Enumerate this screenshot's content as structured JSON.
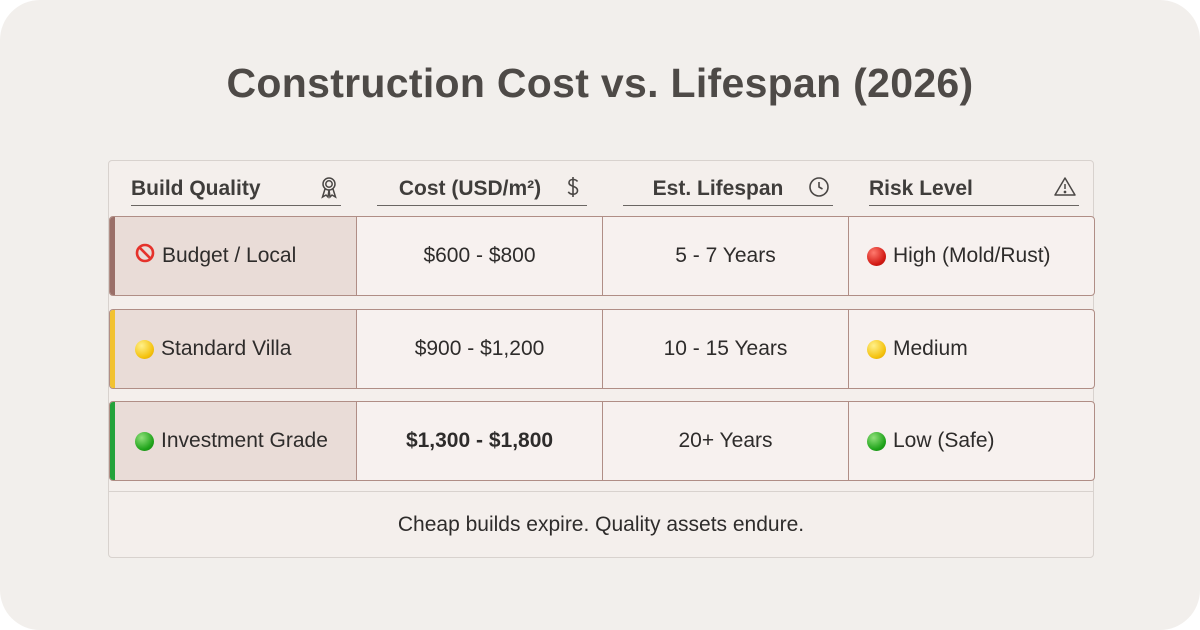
{
  "title": "Construction Cost vs. Lifespan (2026)",
  "columns": [
    {
      "label": "Build Quality",
      "icon": "award-ribbon-icon"
    },
    {
      "label": "Cost (USD/m²)",
      "icon": "dollar-icon"
    },
    {
      "label": "Est. Lifespan",
      "icon": "clock-icon"
    },
    {
      "label": "Risk Level",
      "icon": "warning-triangle-icon"
    }
  ],
  "rows": [
    {
      "quality": "Budget / Local",
      "quality_icon": "prohibited-icon",
      "cost": "$600 - $800",
      "lifespan": "5 - 7 Years",
      "risk": "High (Mold/Rust)",
      "risk_color": "red",
      "accent": "#9a6f68",
      "cost_bold": false
    },
    {
      "quality": "Standard Villa",
      "quality_icon": "yellow-circle-icon",
      "cost": "$900 - $1,200",
      "lifespan": "10 - 15 Years",
      "risk": "Medium",
      "risk_color": "yellow",
      "accent": "#f2c230",
      "cost_bold": false
    },
    {
      "quality": "Investment Grade",
      "quality_icon": "green-circle-icon",
      "cost": "$1,300 - $1,800",
      "lifespan": "20+ Years",
      "risk": "Low (Safe)",
      "risk_color": "green",
      "accent": "#23a23a",
      "cost_bold": true
    }
  ],
  "footer": "Cheap builds expire. Quality assets endure."
}
